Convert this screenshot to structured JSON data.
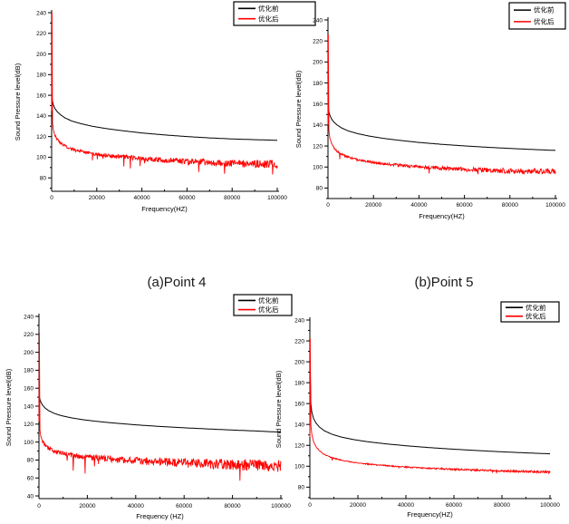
{
  "figure": {
    "description": "Four sound pressure level spectra comparing before/after optimization",
    "background": "#ffffff"
  },
  "captions": {
    "a": "(a)Point 4",
    "b": "(b)Point 5"
  },
  "colors": {
    "before": "#000000",
    "after": "#ff0000",
    "axis": "#000000",
    "legend_border": "#000000",
    "legend_fill": "#ffffff"
  },
  "legend_labels": {
    "before": "优化前",
    "after": "优化后"
  },
  "chart_data": [
    {
      "id": "tl",
      "type": "line",
      "title": "",
      "xlabel": "Frequency(HZ)",
      "ylabel": "Sound Pressure level(dB)",
      "xlim": [
        0,
        100000
      ],
      "ylim": [
        67,
        240
      ],
      "xticks": [
        0,
        20000,
        40000,
        60000,
        80000,
        100000
      ],
      "yticks": [
        80,
        100,
        120,
        140,
        160,
        180,
        200,
        220,
        240
      ],
      "grid": false,
      "legend": {
        "position": "top-right",
        "entries": [
          "优化前",
          "优化后"
        ]
      },
      "series": [
        {
          "name": "优化前",
          "color": "#000000",
          "noise": 0,
          "x": [
            0,
            150,
            400,
            800,
            1500,
            2500,
            4000,
            6000,
            9000,
            13000,
            18000,
            24000,
            31000,
            40000,
            50000,
            60000,
            70000,
            80000,
            90000,
            100000
          ],
          "y": [
            163,
            158,
            154,
            150.5,
            147,
            144,
            141,
            138,
            135,
            132.5,
            130,
            127.8,
            125.8,
            123.5,
            121.6,
            120,
            118.7,
            117.7,
            117,
            116.4
          ]
        },
        {
          "name": "优化后",
          "color": "#ff0000",
          "noise": 4,
          "x": [
            0,
            150,
            400,
            800,
            1500,
            2500,
            4000,
            6000,
            9000,
            13000,
            18000,
            24000,
            31000,
            40000,
            50000,
            60000,
            70000,
            80000,
            90000,
            100000
          ],
          "y": [
            145,
            240,
            133,
            126,
            121,
            117,
            113.5,
            110.5,
            107.8,
            105.5,
            103.5,
            101.8,
            100.3,
            98.7,
            97.2,
            96,
            95,
            94.3,
            93.7,
            93.2
          ]
        }
      ]
    },
    {
      "id": "tr",
      "type": "line",
      "title": "",
      "xlabel": "Frequency(HZ)",
      "ylabel": "Sound Pressure level(dB)",
      "xlim": [
        0,
        100000
      ],
      "ylim": [
        70,
        240
      ],
      "xticks": [
        0,
        20000,
        40000,
        60000,
        80000,
        100000
      ],
      "yticks": [
        80,
        100,
        120,
        140,
        160,
        180,
        200,
        220,
        240
      ],
      "grid": false,
      "legend": {
        "position": "top-right",
        "entries": [
          "优化前",
          "优化后"
        ]
      },
      "series": [
        {
          "name": "优化前",
          "color": "#000000",
          "noise": 0,
          "x": [
            0,
            150,
            400,
            800,
            1500,
            2500,
            4000,
            6000,
            9000,
            13000,
            18000,
            24000,
            31000,
            40000,
            50000,
            60000,
            70000,
            80000,
            90000,
            100000
          ],
          "y": [
            160,
            156,
            152.5,
            149.5,
            146,
            143,
            140,
            137.2,
            134.3,
            131.8,
            129.5,
            127.4,
            125.5,
            123.4,
            121.6,
            120.1,
            118.8,
            117.7,
            116.7,
            115.8
          ]
        },
        {
          "name": "优化后",
          "color": "#ff0000",
          "noise": 2.8,
          "x": [
            0,
            150,
            400,
            800,
            1500,
            2500,
            4000,
            6000,
            9000,
            13000,
            18000,
            24000,
            31000,
            40000,
            50000,
            60000,
            70000,
            80000,
            90000,
            100000
          ],
          "y": [
            140,
            226,
            135,
            128,
            122.5,
            118.5,
            115,
            112,
            109.3,
            107,
            105,
            103.3,
            101.8,
            100.2,
            98.9,
            97.8,
            97,
            96.4,
            95.9,
            95.5
          ]
        }
      ]
    },
    {
      "id": "bl",
      "type": "line",
      "title": "",
      "xlabel": "Frequency (HZ)",
      "ylabel": "Sound Pressure level(dB)",
      "xlim": [
        0,
        100000
      ],
      "ylim": [
        37,
        240
      ],
      "xticks": [
        0,
        20000,
        40000,
        60000,
        80000,
        100000
      ],
      "yticks": [
        40,
        60,
        80,
        100,
        120,
        140,
        160,
        180,
        200,
        220,
        240
      ],
      "grid": false,
      "legend": {
        "position": "top-right",
        "entries": [
          "优化前",
          "优化后"
        ]
      },
      "series": [
        {
          "name": "优化前",
          "color": "#000000",
          "noise": 0,
          "x": [
            0,
            150,
            400,
            800,
            1500,
            2500,
            4000,
            6000,
            9000,
            13000,
            18000,
            24000,
            31000,
            40000,
            50000,
            60000,
            70000,
            80000,
            90000,
            100000
          ],
          "y": [
            155,
            151,
            147.5,
            144.5,
            141,
            138,
            135,
            132.3,
            129.6,
            127.2,
            125,
            123,
            121.2,
            119.2,
            117.4,
            115.9,
            114.6,
            113.4,
            112.3,
            111
          ]
        },
        {
          "name": "优化后",
          "color": "#ff0000",
          "noise": 7,
          "x": [
            0,
            150,
            400,
            800,
            1500,
            2500,
            4000,
            6000,
            9000,
            13000,
            18000,
            24000,
            31000,
            40000,
            50000,
            60000,
            70000,
            80000,
            90000,
            100000
          ],
          "y": [
            123,
            222,
            113,
            106,
            100.5,
            96.5,
            93.2,
            90.3,
            87.8,
            85.7,
            83.8,
            82.2,
            80.8,
            79.3,
            78,
            76.8,
            75.8,
            74.9,
            74.1,
            73.4
          ]
        }
      ]
    },
    {
      "id": "br",
      "type": "line",
      "title": "",
      "xlabel": "Frequency(HZ)",
      "ylabel": "Sound Pressure level(dB)",
      "xlim": [
        0,
        100000
      ],
      "ylim": [
        69,
        240
      ],
      "xticks": [
        0,
        20000,
        40000,
        60000,
        80000,
        100000
      ],
      "yticks": [
        80,
        100,
        120,
        140,
        160,
        180,
        200,
        220,
        240
      ],
      "grid": false,
      "legend": {
        "position": "top-right",
        "entries": [
          "优化前",
          "优化后"
        ]
      },
      "series": [
        {
          "name": "优化前",
          "color": "#000000",
          "noise": 0,
          "x": [
            0,
            150,
            400,
            800,
            1500,
            2500,
            4000,
            6000,
            9000,
            13000,
            18000,
            24000,
            31000,
            40000,
            50000,
            60000,
            70000,
            80000,
            90000,
            100000
          ],
          "y": [
            130,
            193,
            160,
            152,
            146,
            141.5,
            137.5,
            134,
            130.8,
            128,
            125.6,
            123.5,
            121.6,
            119.6,
            117.8,
            116.3,
            115,
            113.8,
            112.8,
            111.9
          ]
        },
        {
          "name": "优化后",
          "color": "#ff0000",
          "noise": 1.1,
          "x": [
            0,
            150,
            400,
            800,
            1500,
            2500,
            4000,
            6000,
            9000,
            13000,
            18000,
            24000,
            31000,
            40000,
            50000,
            60000,
            70000,
            80000,
            90000,
            100000
          ],
          "y": [
            128,
            222,
            140,
            131,
            124,
            119,
            114.8,
            111.3,
            108.3,
            105.8,
            103.8,
            102.1,
            100.7,
            99.2,
            98,
            97,
            96.2,
            95.5,
            95,
            94.5
          ]
        }
      ]
    }
  ]
}
